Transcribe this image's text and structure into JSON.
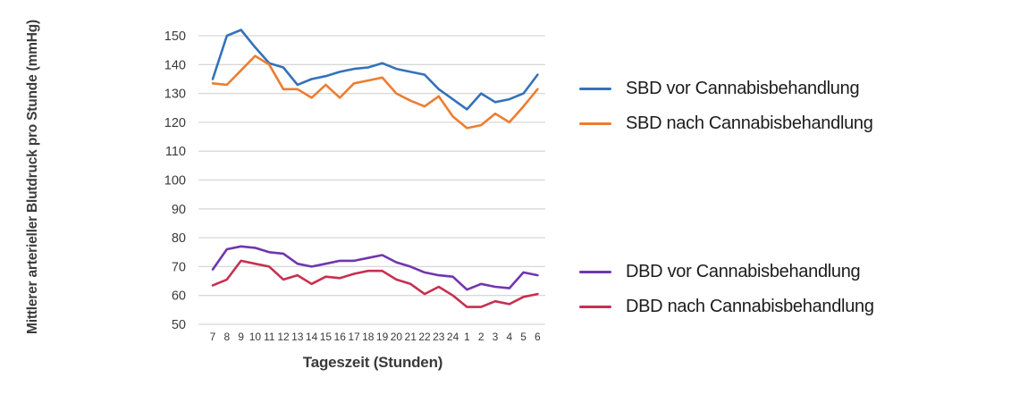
{
  "chart_data": {
    "type": "line",
    "title": "",
    "xlabel": "Tageszeit (Stunden)",
    "ylabel": "Mittlerer arterieller Blutdruck pro Stunde (mmHg)",
    "x_categories": [
      "7",
      "8",
      "9",
      "10",
      "11",
      "12",
      "13",
      "14",
      "15",
      "16",
      "17",
      "18",
      "19",
      "20",
      "21",
      "22",
      "23",
      "24",
      "1",
      "2",
      "3",
      "4",
      "5",
      "6"
    ],
    "ylim": [
      50,
      150
    ],
    "yticks": [
      50,
      60,
      70,
      80,
      90,
      100,
      110,
      120,
      130,
      140,
      150
    ],
    "grid": "horizontal",
    "legend_position": "right-split",
    "colors": {
      "grid": "#d8d8d8",
      "axis_text": "#3a3a3a",
      "legend_text": "#1c1c1c",
      "background": "#ffffff"
    },
    "series": [
      {
        "name": "SBD vor Cannabisbehandlung",
        "color": "#3472b9",
        "values": [
          135,
          150,
          152,
          146,
          140.5,
          139,
          133,
          135,
          136,
          137.5,
          138.5,
          139,
          140.5,
          138.5,
          137.5,
          136.5,
          131.5,
          128,
          124.5,
          130,
          127,
          128,
          130,
          136.5
        ]
      },
      {
        "name": "SBD nach Cannabisbehandlung",
        "color": "#ed7d31",
        "values": [
          133.5,
          133,
          138,
          143,
          140,
          131.5,
          131.5,
          128.5,
          133,
          128.5,
          133.5,
          134.5,
          135.5,
          130,
          127.5,
          125.5,
          129,
          122,
          118,
          119,
          123,
          120,
          125.5,
          131.5
        ]
      },
      {
        "name": "DBD vor Cannabisbehandlung",
        "color": "#7036ad",
        "values": [
          69,
          76,
          77,
          76.5,
          75,
          74.5,
          71,
          70,
          71,
          72,
          72,
          73,
          74,
          71.5,
          70,
          68,
          67,
          66.5,
          62,
          64,
          63,
          62.5,
          68,
          67
        ]
      },
      {
        "name": "DBD nach Cannabisbehandlung",
        "color": "#c63050",
        "values": [
          63.5,
          65.5,
          72,
          71,
          70,
          65.5,
          67,
          64,
          66.5,
          66,
          67.5,
          68.5,
          68.5,
          65.5,
          64,
          60.5,
          63,
          60,
          56,
          56,
          58,
          57,
          59.5,
          60.5
        ]
      }
    ]
  }
}
